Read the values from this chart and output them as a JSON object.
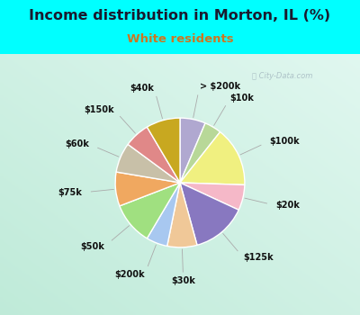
{
  "title": "Income distribution in Morton, IL (%)",
  "subtitle": "White residents",
  "title_color": "#1a1a2e",
  "subtitle_color": "#cc7722",
  "bg_color": "#00ffff",
  "watermark": "ⓘ City-Data.com",
  "labels": [
    "> $200k",
    "$10k",
    "$100k",
    "$20k",
    "$125k",
    "$30k",
    "$200k",
    "$50k",
    "$75k",
    "$60k",
    "$150k",
    "$40k"
  ],
  "values": [
    6,
    4,
    14,
    6,
    13,
    7,
    5,
    10,
    8,
    7,
    6,
    8
  ],
  "colors": [
    "#b0a8d0",
    "#b8d898",
    "#f0f080",
    "#f5b8c8",
    "#8878c0",
    "#f0c898",
    "#a8c8f0",
    "#a0e080",
    "#f0a860",
    "#c8c0a8",
    "#e08888",
    "#c8a820"
  ],
  "label_colors": [
    "#333333",
    "#333333",
    "#333333",
    "#333333",
    "#333333",
    "#333333",
    "#333333",
    "#333333",
    "#333333",
    "#333333",
    "#333333",
    "#333333"
  ]
}
